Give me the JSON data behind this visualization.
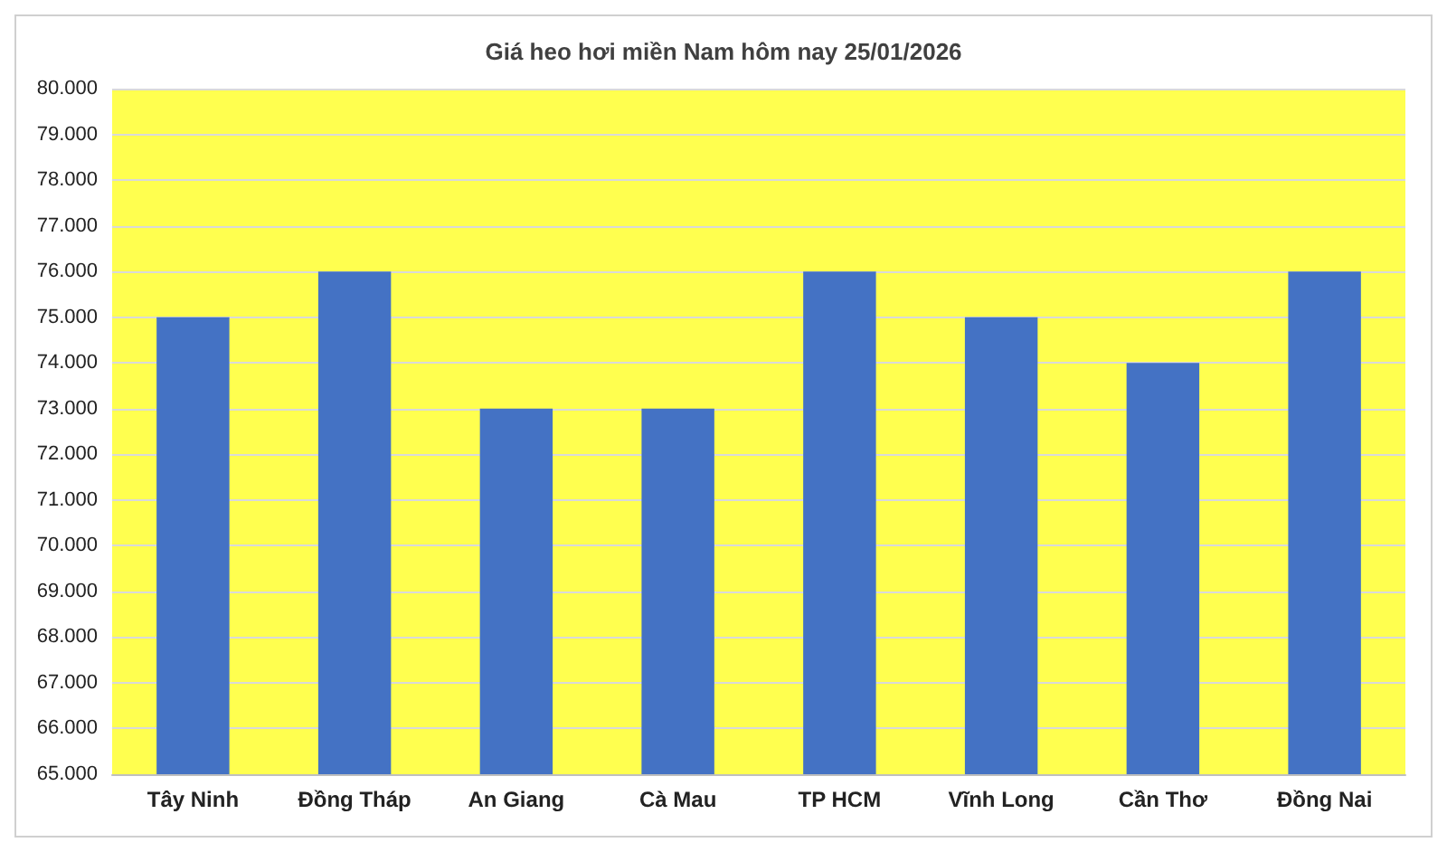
{
  "chart_data": {
    "type": "bar",
    "title": "Giá heo hơi miền Nam hôm nay 25/01/2026",
    "categories": [
      "Tây Ninh",
      "Đồng Tháp",
      "An Giang",
      "Cà Mau",
      "TP HCM",
      "Vĩnh Long",
      "Cần Thơ",
      "Đồng Nai"
    ],
    "values": [
      75000,
      76000,
      73000,
      73000,
      76000,
      75000,
      74000,
      76000
    ],
    "color": "#4472c4",
    "ylim": [
      65000,
      80000
    ],
    "yticks": [
      {
        "value": 65000,
        "label": "65.000"
      },
      {
        "value": 66000,
        "label": "66.000"
      },
      {
        "value": 67000,
        "label": "67.000"
      },
      {
        "value": 68000,
        "label": "68.000"
      },
      {
        "value": 69000,
        "label": "69.000"
      },
      {
        "value": 70000,
        "label": "70.000"
      },
      {
        "value": 71000,
        "label": "71.000"
      },
      {
        "value": 72000,
        "label": "72.000"
      },
      {
        "value": 73000,
        "label": "73.000"
      },
      {
        "value": 74000,
        "label": "74.000"
      },
      {
        "value": 75000,
        "label": "75.000"
      },
      {
        "value": 76000,
        "label": "76.000"
      },
      {
        "value": 77000,
        "label": "77.000"
      },
      {
        "value": 78000,
        "label": "78.000"
      },
      {
        "value": 79000,
        "label": "79.000"
      },
      {
        "value": 80000,
        "label": "80.000"
      }
    ],
    "grid": "y"
  }
}
